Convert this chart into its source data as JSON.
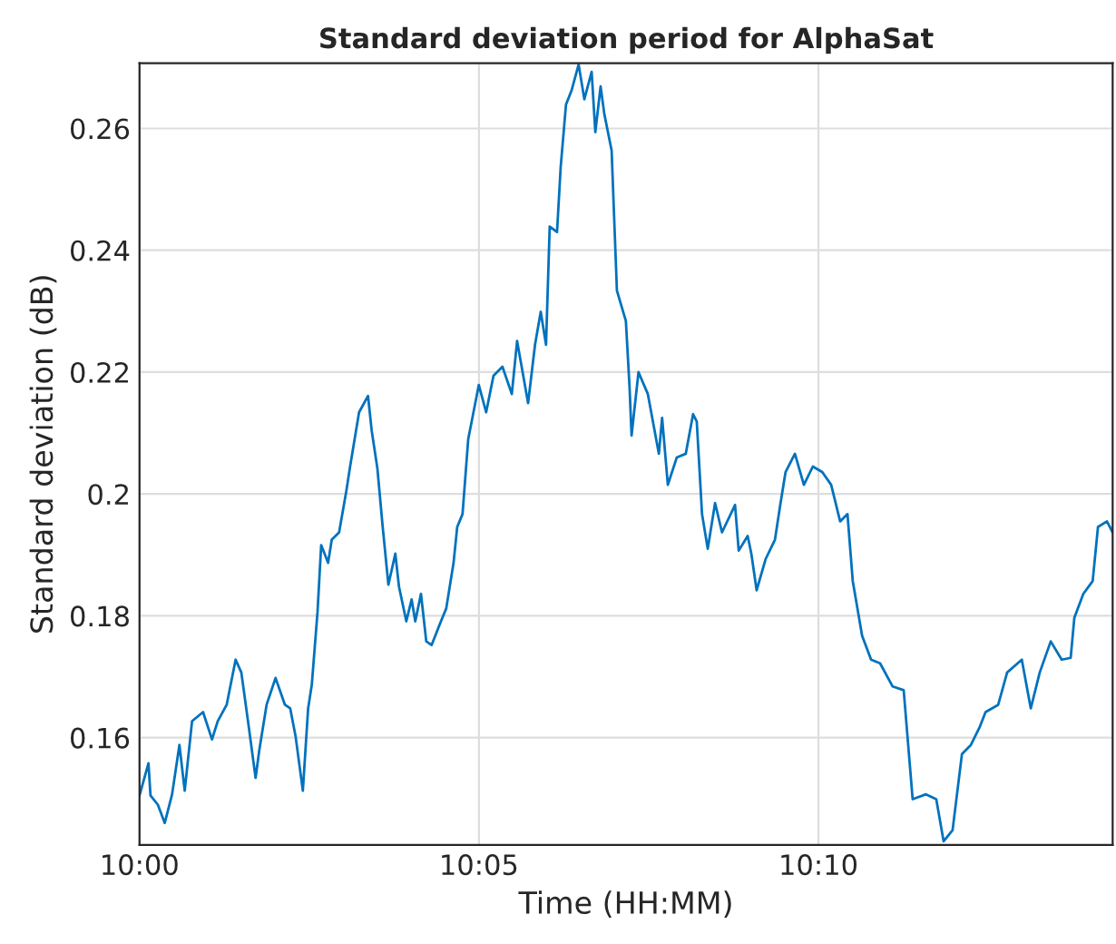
{
  "chart_data": {
    "type": "line",
    "title": "Standard deviation period for AlphaSat",
    "xlabel": "Time (HH:MM)",
    "ylabel": "Standard deviation (dB)",
    "x": [
      10.0,
      10.0022,
      10.0027,
      10.0045,
      10.0062,
      10.008,
      10.0098,
      10.0111,
      10.0129,
      10.0156,
      10.0178,
      10.0192,
      10.0214,
      10.0236,
      10.025,
      10.0267,
      10.0285,
      10.0294,
      10.0312,
      10.0334,
      10.0357,
      10.037,
      10.0383,
      10.0401,
      10.0414,
      10.0423,
      10.0437,
      10.0446,
      10.0463,
      10.0472,
      10.049,
      10.0508,
      10.0517,
      10.0539,
      10.0561,
      10.057,
      10.0584,
      10.0597,
      10.0611,
      10.0628,
      10.0637,
      10.0655,
      10.0668,
      10.0677,
      10.0691,
      10.0704,
      10.0717,
      10.074,
      10.0753,
      10.0771,
      10.078,
      10.0793,
      10.0807,
      10.0833,
      10.0851,
      10.0869,
      10.0891,
      10.0914,
      10.0927,
      10.0954,
      10.0971,
      10.0985,
      10.0998,
      10.1007,
      10.1025,
      10.1034,
      10.1047,
      10.1061,
      10.1078,
      10.1092,
      10.111,
      10.1119,
      10.1132,
      10.1141,
      10.1159,
      10.1172,
      10.1194,
      10.1203,
      10.1208,
      10.1225,
      10.1248,
      10.1275,
      10.1283,
      10.1297,
      10.1319,
      10.1341,
      10.1359,
      10.1368,
      10.1381,
      10.1395,
      10.1413,
      10.143,
      10.1462,
      10.1471,
      10.1493,
      10.1502,
      10.1515,
      10.1537,
      10.156,
      10.1573,
      10.1586,
      10.1609,
      10.1631,
      10.1653,
      10.1676,
      10.1698,
      10.172,
      10.1738,
      10.1751,
      10.1774,
      10.1796,
      10.1818,
      10.1849,
      10.1876,
      10.1898,
      10.193,
      10.1956,
      10.1974,
      10.1996,
      10.2019,
      10.2041,
      10.2063,
      10.2077,
      10.2108,
      10.213,
      10.2166,
      10.2188,
      10.221,
      10.2237,
      10.2264,
      10.2286,
      10.2295,
      10.2317,
      10.234,
      10.2353,
      10.2375,
      10.2389
    ],
    "series": [
      {
        "color": "#0072bd",
        "values": [
          0.1505,
          0.1558,
          0.1505,
          0.149,
          0.146,
          0.1507,
          0.1588,
          0.1513,
          0.1627,
          0.1642,
          0.1597,
          0.1627,
          0.1654,
          0.1728,
          0.1707,
          0.1624,
          0.1534,
          0.1579,
          0.1654,
          0.1698,
          0.1654,
          0.1648,
          0.1603,
          0.1513,
          0.1648,
          0.1687,
          0.1806,
          0.1916,
          0.1887,
          0.1925,
          0.1937,
          0.2006,
          0.2045,
          0.2134,
          0.2161,
          0.2104,
          0.2042,
          0.1946,
          0.1851,
          0.1902,
          0.1848,
          0.1791,
          0.1827,
          0.1791,
          0.1836,
          0.1758,
          0.1752,
          0.1791,
          0.1812,
          0.1887,
          0.1946,
          0.1967,
          0.209,
          0.2179,
          0.2134,
          0.2194,
          0.2209,
          0.2164,
          0.2251,
          0.2149,
          0.2245,
          0.2299,
          0.2245,
          0.2439,
          0.243,
          0.2537,
          0.2639,
          0.2663,
          0.2705,
          0.2648,
          0.2693,
          0.2594,
          0.2669,
          0.2624,
          0.2564,
          0.2334,
          0.2284,
          0.2176,
          0.2096,
          0.22,
          0.2164,
          0.2066,
          0.2125,
          0.2015,
          0.206,
          0.2066,
          0.2131,
          0.2119,
          0.1967,
          0.191,
          0.1985,
          0.1937,
          0.1982,
          0.1907,
          0.1931,
          0.1902,
          0.1842,
          0.1893,
          0.1925,
          0.1982,
          0.2036,
          0.2066,
          0.2015,
          0.2045,
          0.2036,
          0.2015,
          0.1955,
          0.1967,
          0.1857,
          0.1767,
          0.1728,
          0.1722,
          0.1684,
          0.1678,
          0.1499,
          0.1507,
          0.1499,
          0.143,
          0.1448,
          0.1573,
          0.1588,
          0.1618,
          0.1642,
          0.1654,
          0.1707,
          0.1728,
          0.1648,
          0.1707,
          0.1758,
          0.1728,
          0.1731,
          0.1797,
          0.1836,
          0.1857,
          0.1946,
          0.1955,
          0.1937
        ]
      }
    ],
    "xlim": [
      10.0,
      10.2389
    ],
    "ylim": [
      0.1424,
      0.2707
    ],
    "xticks": [
      {
        "value": 10.0,
        "label": "10:00"
      },
      {
        "value": 10.083333,
        "label": "10:05"
      },
      {
        "value": 10.166667,
        "label": "10:10"
      }
    ],
    "yticks": [
      0.16,
      0.18,
      0.2,
      0.22,
      0.24,
      0.26
    ],
    "grid": true,
    "marker": "none",
    "line_style": "solid"
  }
}
